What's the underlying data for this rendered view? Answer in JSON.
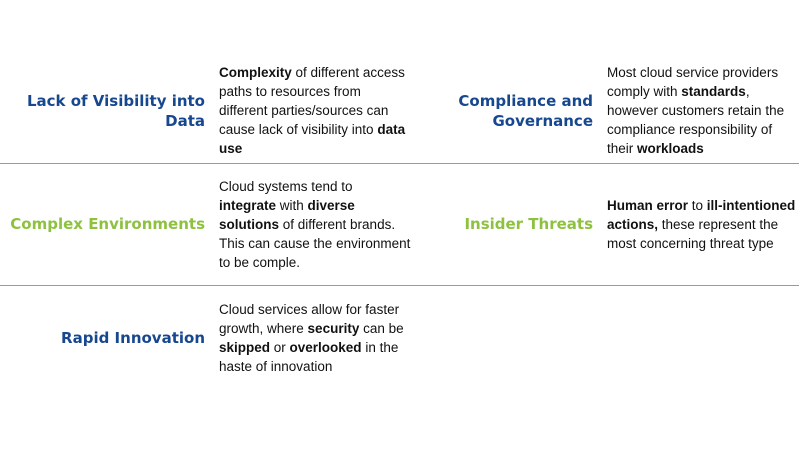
{
  "rows": [
    {
      "cells": [
        {
          "title": "Lack of Visibility into Data",
          "color": "#17478f",
          "description": [
            {
              "text": "Complexity",
              "bold": true
            },
            {
              "text": " of different access paths to resources from different parties/sources can cause lack of visibility into ",
              "bold": false
            },
            {
              "text": "data use",
              "bold": true
            }
          ]
        },
        {
          "title": "Compliance and Governance",
          "color": "#17478f",
          "description": [
            {
              "text": "Most cloud service providers comply with ",
              "bold": false
            },
            {
              "text": "standards",
              "bold": true
            },
            {
              "text": ", however customers retain the compliance responsibility of their ",
              "bold": false
            },
            {
              "text": "workloads",
              "bold": true
            }
          ]
        }
      ]
    },
    {
      "cells": [
        {
          "title": "Complex Environments",
          "color": "#8dc13f",
          "description": [
            {
              "text": "Cloud systems tend to ",
              "bold": false
            },
            {
              "text": "integrate",
              "bold": true
            },
            {
              "text": " with ",
              "bold": false
            },
            {
              "text": "diverse solutions",
              "bold": true
            },
            {
              "text": " of different brands. This can cause the environment to be comple.",
              "bold": false
            }
          ]
        },
        {
          "title": "Insider Threats",
          "color": "#8dc13f",
          "description": [
            {
              "text": "Human error",
              "bold": true
            },
            {
              "text": " to ",
              "bold": false
            },
            {
              "text": "ill-intentioned actions,",
              "bold": true
            },
            {
              "text": " these represent the most concerning threat type",
              "bold": false
            }
          ]
        }
      ]
    },
    {
      "cells": [
        {
          "title": "Rapid Innovation",
          "color": "#17478f",
          "description": [
            {
              "text": "Cloud services allow for faster growth, where ",
              "bold": false
            },
            {
              "text": "security",
              "bold": true
            },
            {
              "text": " can be ",
              "bold": false
            },
            {
              "text": "skipped",
              "bold": true
            },
            {
              "text": " or ",
              "bold": false
            },
            {
              "text": "overlooked",
              "bold": true
            },
            {
              "text": " in the haste of innovation",
              "bold": false
            }
          ]
        }
      ]
    }
  ]
}
